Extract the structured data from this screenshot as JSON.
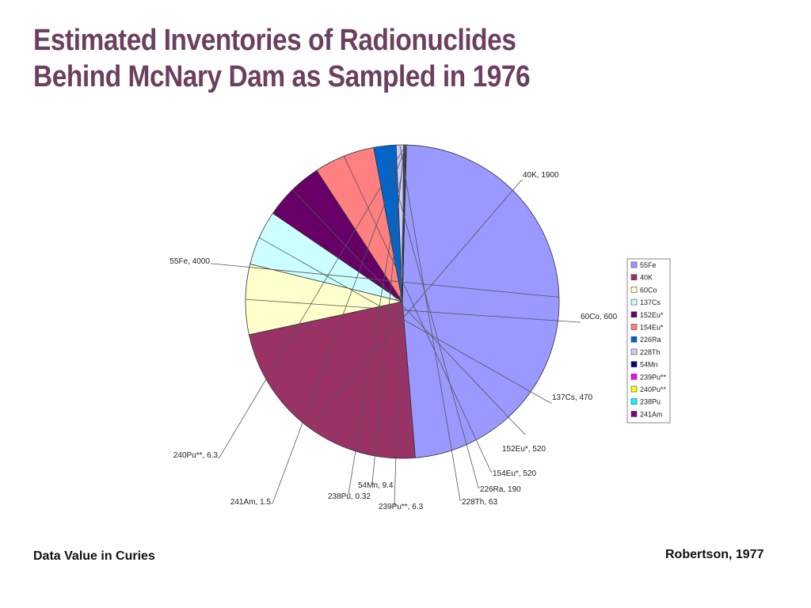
{
  "title": {
    "line1": "Estimated Inventories of Radionuclides",
    "line2": "Behind McNary Dam as Sampled in 1976"
  },
  "footer": {
    "left": "Data Value in Curies",
    "right": "Robertson, 1977"
  },
  "chart_data": {
    "type": "pie",
    "title": "",
    "legend_position": "right",
    "slices": [
      {
        "name": "55Fe",
        "value": 4000,
        "label": "55Fe, 4000",
        "color": "#9999ff"
      },
      {
        "name": "40K",
        "value": 1900,
        "label": "40K, 1900",
        "color": "#993366"
      },
      {
        "name": "60Co",
        "value": 600,
        "label": "60Co, 600",
        "color": "#ffffcc"
      },
      {
        "name": "137Cs",
        "value": 470,
        "label": "137Cs, 470",
        "color": "#ccffff"
      },
      {
        "name": "152Eu*",
        "value": 520,
        "label": "152Eu*, 520",
        "color": "#660066"
      },
      {
        "name": "154Eu*",
        "value": 520,
        "label": "154Eu*, 520",
        "color": "#ff8080"
      },
      {
        "name": "226Ra",
        "value": 190,
        "label": "226Ra, 190",
        "color": "#0066cc"
      },
      {
        "name": "228Th",
        "value": 63,
        "label": "228Th, 63",
        "color": "#ccccff"
      },
      {
        "name": "54Mn",
        "value": 9.4,
        "label": "54Mn, 9.4",
        "color": "#000080"
      },
      {
        "name": "239Pu**",
        "value": 6.3,
        "label": "239Pu**, 6.3",
        "color": "#ff00ff"
      },
      {
        "name": "240Pu**",
        "value": 6.3,
        "label": "240Pu**, 6.3",
        "color": "#ffff00"
      },
      {
        "name": "238Pu",
        "value": 0.32,
        "label": "238Pu, 0.32",
        "color": "#00ffff"
      },
      {
        "name": "241Am",
        "value": 1.5,
        "label": "241Am, 1.5",
        "color": "#800080"
      }
    ]
  }
}
